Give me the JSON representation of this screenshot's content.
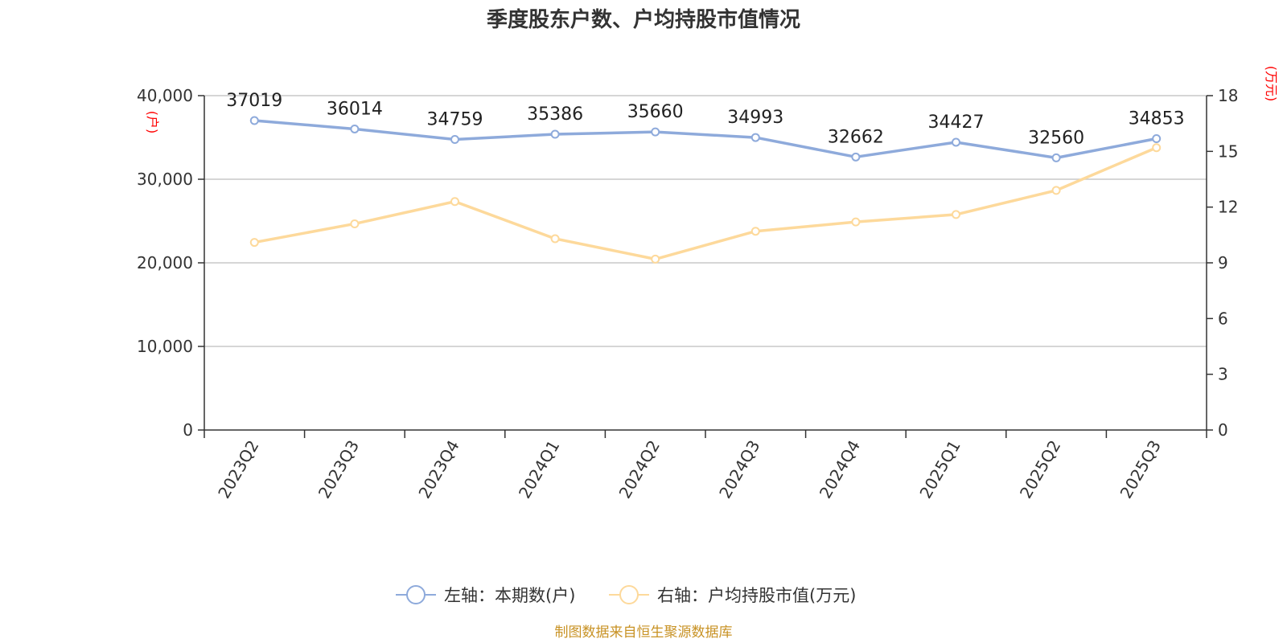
{
  "chart_data": {
    "type": "line",
    "title": "季度股东户数、户均持股市值情况",
    "categories": [
      "2023Q2",
      "2023Q3",
      "2023Q4",
      "2024Q1",
      "2024Q2",
      "2024Q3",
      "2024Q4",
      "2025Q1",
      "2025Q2",
      "2025Q3"
    ],
    "series": [
      {
        "name": "左轴：本期数(户)",
        "axis": "left",
        "color": "#8eaadb",
        "values": [
          37019,
          36014,
          34759,
          35386,
          35660,
          34993,
          32662,
          34427,
          32560,
          34853
        ],
        "show_labels": true
      },
      {
        "name": "右轴：户均持股市值(万元)",
        "axis": "right",
        "color": "#fdd99b",
        "values": [
          10.1,
          11.1,
          12.3,
          10.3,
          9.2,
          10.7,
          11.2,
          11.6,
          12.9,
          15.2
        ],
        "show_labels": false
      }
    ],
    "left_axis": {
      "unit": "(户)",
      "ylim": [
        0,
        40000
      ],
      "ticks": [
        0,
        10000,
        20000,
        30000,
        40000
      ],
      "tick_labels": [
        "0",
        "10,000",
        "20,000",
        "30,000",
        "40,000"
      ]
    },
    "right_axis": {
      "unit": "(万元)",
      "ylim": [
        0,
        18
      ],
      "ticks": [
        0,
        3,
        6,
        9,
        12,
        15,
        18
      ],
      "tick_labels": [
        "0",
        "3",
        "6",
        "9",
        "12",
        "15",
        "18"
      ]
    },
    "grid": true,
    "legend_position": "bottom-center",
    "source": "制图数据来自恒生聚源数据库"
  }
}
